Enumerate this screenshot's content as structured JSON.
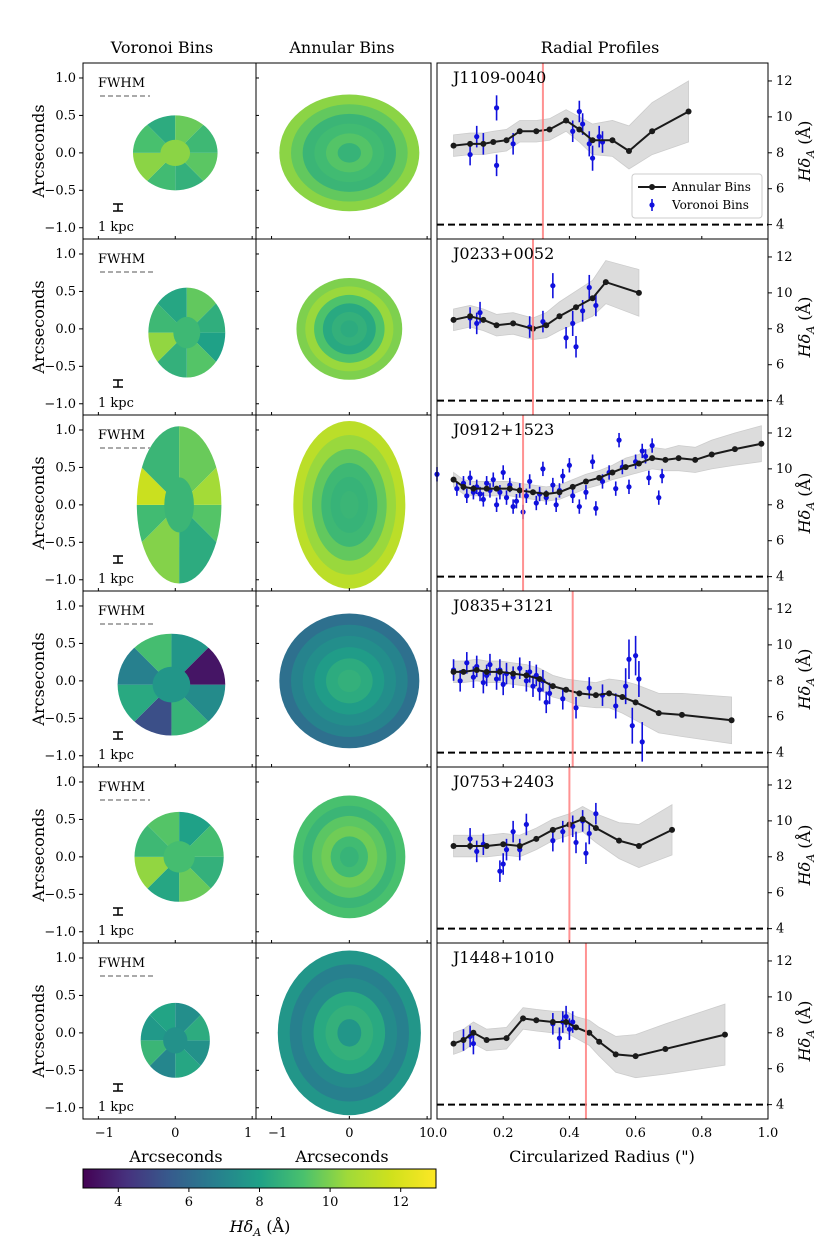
{
  "column_titles": [
    "Voronoi Bins",
    "Annular Bins",
    "Radial Profiles"
  ],
  "colors": {
    "annular_line": "#1a1a1a",
    "voronoi_points": "#1010dd",
    "band": "#d6d6d6",
    "fwhm_line": "#ff7f7f",
    "threshold_line": "#000000",
    "fwhm_bar": "#aaaaaa"
  },
  "image_axes": {
    "ylabel": "Arcseconds",
    "xlabel": "Arcseconds",
    "xticks": [
      "−1",
      "0",
      "1"
    ],
    "yticks": [
      "1.0",
      "0.5",
      "0.0",
      "−0.5",
      "−1.0"
    ],
    "fwhm_label": "FWHM",
    "scale_label": "1 kpc"
  },
  "colorbar": {
    "label": "Hδ_A (Å)",
    "label_main": "Hδ",
    "label_sub": "A",
    "label_unit": " (Å)",
    "min": 3,
    "max": 13,
    "ticks": [
      "4",
      "6",
      "8",
      "10",
      "12"
    ],
    "colormap": "viridis"
  },
  "chart_data": {
    "type": "line",
    "xlabel": "Circularized Radius (\")",
    "ylabel": "Hδ_A (Å)",
    "ylabel_main": "Hδ",
    "ylabel_sub": "A",
    "ylabel_unit": " (Å)",
    "xlim": [
      0.0,
      1.0
    ],
    "ylim": [
      3.2,
      13.0
    ],
    "xticks": [
      "0.0",
      "0.2",
      "0.4",
      "0.6",
      "0.8",
      "1.0"
    ],
    "yticks": [
      "4",
      "6",
      "8",
      "10",
      "12"
    ],
    "threshold": 4,
    "legend": [
      "Annular Bins",
      "Voronoi Bins"
    ],
    "panels": [
      {
        "name": "J1109-0040",
        "fwhm_radius": 0.32,
        "annular": {
          "r": [
            0.05,
            0.1,
            0.14,
            0.17,
            0.21,
            0.25,
            0.3,
            0.34,
            0.39,
            0.43,
            0.47,
            0.53,
            0.58,
            0.65,
            0.76
          ],
          "v": [
            8.4,
            8.5,
            8.5,
            8.6,
            8.7,
            9.2,
            9.2,
            9.3,
            9.8,
            9.3,
            8.7,
            8.7,
            8.1,
            9.2,
            10.3
          ],
          "lo": [
            7.8,
            7.9,
            7.9,
            8.0,
            8.1,
            8.6,
            8.6,
            8.7,
            9.2,
            8.6,
            7.9,
            7.8,
            7.1,
            7.9,
            8.6
          ],
          "hi": [
            9.0,
            9.1,
            9.1,
            9.2,
            9.3,
            9.8,
            9.8,
            9.9,
            10.4,
            10.0,
            9.6,
            9.8,
            9.5,
            10.8,
            12.0
          ]
        },
        "voronoi": {
          "r": [
            0.1,
            0.12,
            0.14,
            0.18,
            0.18,
            0.23,
            0.41,
            0.43,
            0.44,
            0.46,
            0.47,
            0.49,
            0.5
          ],
          "v": [
            7.9,
            8.9,
            8.5,
            10.5,
            7.3,
            8.5,
            9.2,
            10.3,
            9.6,
            8.5,
            7.7,
            8.9,
            8.6
          ],
          "e": [
            0.6,
            0.6,
            0.6,
            0.7,
            0.6,
            0.6,
            0.6,
            0.6,
            0.6,
            0.7,
            0.7,
            0.6,
            0.6
          ]
        }
      },
      {
        "name": "J0233+0052",
        "fwhm_radius": 0.29,
        "annular": {
          "r": [
            0.05,
            0.1,
            0.14,
            0.18,
            0.23,
            0.29,
            0.33,
            0.37,
            0.42,
            0.47,
            0.51,
            0.61
          ],
          "v": [
            8.5,
            8.7,
            8.5,
            8.2,
            8.3,
            8.0,
            8.2,
            8.7,
            9.2,
            9.7,
            10.6,
            10.0
          ],
          "lo": [
            7.9,
            8.1,
            7.9,
            7.6,
            7.7,
            7.4,
            7.5,
            7.9,
            8.3,
            8.7,
            9.4,
            8.7
          ],
          "hi": [
            9.1,
            9.3,
            9.1,
            8.8,
            8.9,
            8.6,
            8.9,
            9.5,
            10.1,
            10.7,
            11.8,
            11.3
          ]
        },
        "voronoi": {
          "r": [
            0.1,
            0.12,
            0.13,
            0.28,
            0.32,
            0.35,
            0.39,
            0.41,
            0.42,
            0.44,
            0.46,
            0.48
          ],
          "v": [
            8.6,
            8.3,
            8.9,
            8.1,
            8.4,
            10.4,
            7.5,
            8.3,
            7.0,
            9.0,
            10.3,
            9.3
          ],
          "e": [
            0.6,
            0.6,
            0.6,
            0.6,
            0.6,
            0.7,
            0.6,
            0.7,
            0.6,
            0.6,
            0.7,
            0.6
          ]
        }
      },
      {
        "name": "J0912+1523",
        "fwhm_radius": 0.26,
        "annular": {
          "r": [
            0.05,
            0.08,
            0.11,
            0.15,
            0.18,
            0.22,
            0.25,
            0.29,
            0.33,
            0.37,
            0.41,
            0.45,
            0.49,
            0.53,
            0.57,
            0.61,
            0.65,
            0.69,
            0.73,
            0.78,
            0.83,
            0.9,
            0.98
          ],
          "v": [
            9.4,
            9.0,
            8.9,
            8.9,
            8.9,
            8.9,
            8.8,
            8.7,
            8.6,
            8.7,
            9.0,
            9.3,
            9.5,
            9.8,
            10.1,
            10.3,
            10.6,
            10.5,
            10.6,
            10.5,
            10.8,
            11.1,
            11.4
          ],
          "lo": [
            9.0,
            8.6,
            8.5,
            8.5,
            8.5,
            8.5,
            8.4,
            8.3,
            8.2,
            8.3,
            8.6,
            8.9,
            9.1,
            9.4,
            9.6,
            9.8,
            10.0,
            9.9,
            9.9,
            9.8,
            10.0,
            10.2,
            10.4
          ],
          "hi": [
            9.8,
            9.4,
            9.3,
            9.3,
            9.3,
            9.3,
            9.2,
            9.1,
            9.0,
            9.1,
            9.4,
            9.7,
            9.9,
            10.2,
            10.6,
            10.8,
            11.2,
            11.1,
            11.3,
            11.2,
            11.6,
            12.0,
            12.4
          ]
        },
        "voronoi": {
          "r": [
            0.0,
            0.06,
            0.08,
            0.09,
            0.1,
            0.11,
            0.12,
            0.13,
            0.14,
            0.15,
            0.16,
            0.17,
            0.18,
            0.19,
            0.2,
            0.21,
            0.22,
            0.23,
            0.24,
            0.25,
            0.26,
            0.27,
            0.28,
            0.3,
            0.31,
            0.32,
            0.33,
            0.35,
            0.36,
            0.37,
            0.38,
            0.4,
            0.41,
            0.43,
            0.45,
            0.47,
            0.48,
            0.5,
            0.52,
            0.54,
            0.55,
            0.56,
            0.58,
            0.6,
            0.62,
            0.63,
            0.64,
            0.65,
            0.67,
            0.68
          ],
          "v": [
            9.7,
            8.9,
            9.2,
            8.5,
            9.5,
            8.7,
            9.0,
            8.6,
            8.3,
            9.2,
            8.8,
            9.4,
            8.0,
            8.7,
            9.8,
            8.4,
            9.1,
            7.9,
            8.2,
            8.8,
            7.6,
            8.5,
            9.3,
            8.1,
            8.6,
            10.0,
            8.4,
            9.1,
            8.0,
            8.8,
            9.6,
            10.2,
            8.5,
            7.9,
            8.7,
            10.4,
            7.8,
            9.3,
            9.8,
            8.9,
            11.6,
            10.1,
            9.0,
            10.4,
            11.0,
            10.7,
            9.5,
            11.3,
            8.4,
            9.6
          ],
          "e": [
            0.4,
            0.4,
            0.4,
            0.4,
            0.4,
            0.4,
            0.4,
            0.4,
            0.4,
            0.4,
            0.4,
            0.4,
            0.4,
            0.4,
            0.4,
            0.4,
            0.4,
            0.4,
            0.4,
            0.4,
            0.4,
            0.4,
            0.4,
            0.4,
            0.4,
            0.4,
            0.4,
            0.4,
            0.4,
            0.4,
            0.4,
            0.4,
            0.4,
            0.4,
            0.4,
            0.4,
            0.4,
            0.4,
            0.4,
            0.4,
            0.4,
            0.4,
            0.4,
            0.4,
            0.4,
            0.4,
            0.4,
            0.4,
            0.4,
            0.4
          ]
        }
      },
      {
        "name": "J0835+3121",
        "fwhm_radius": 0.41,
        "annular": {
          "r": [
            0.05,
            0.08,
            0.12,
            0.15,
            0.19,
            0.23,
            0.27,
            0.31,
            0.35,
            0.39,
            0.43,
            0.48,
            0.52,
            0.56,
            0.6,
            0.67,
            0.74,
            0.89
          ],
          "v": [
            8.5,
            8.5,
            8.6,
            8.5,
            8.5,
            8.4,
            8.3,
            8.1,
            7.7,
            7.5,
            7.3,
            7.2,
            7.3,
            7.1,
            6.8,
            6.2,
            6.1,
            5.8
          ],
          "lo": [
            7.9,
            7.9,
            8.0,
            7.9,
            7.9,
            7.8,
            7.7,
            7.5,
            7.1,
            6.9,
            6.6,
            6.5,
            6.5,
            6.2,
            5.8,
            5.1,
            4.9,
            4.5
          ],
          "hi": [
            9.1,
            9.1,
            9.2,
            9.1,
            9.1,
            9.0,
            8.9,
            8.7,
            8.3,
            8.1,
            8.0,
            7.9,
            8.1,
            8.0,
            7.8,
            7.3,
            7.3,
            7.1
          ]
        },
        "voronoi": {
          "r": [
            0.05,
            0.07,
            0.09,
            0.11,
            0.12,
            0.14,
            0.15,
            0.16,
            0.18,
            0.19,
            0.2,
            0.21,
            0.23,
            0.25,
            0.27,
            0.28,
            0.29,
            0.3,
            0.31,
            0.32,
            0.33,
            0.34,
            0.38,
            0.42,
            0.46,
            0.5,
            0.54,
            0.57,
            0.58,
            0.59,
            0.6,
            0.61,
            0.62
          ],
          "v": [
            8.6,
            8.0,
            9.0,
            8.2,
            8.8,
            7.9,
            8.3,
            8.9,
            8.1,
            8.6,
            7.8,
            8.4,
            8.2,
            8.7,
            8.0,
            8.5,
            7.7,
            8.3,
            7.5,
            8.0,
            6.8,
            7.3,
            7.0,
            6.5,
            7.6,
            7.2,
            6.6,
            7.7,
            9.2,
            5.5,
            9.4,
            8.1,
            4.6
          ],
          "e": [
            0.6,
            0.6,
            0.6,
            0.6,
            0.6,
            0.6,
            0.6,
            0.6,
            0.6,
            0.6,
            0.6,
            0.6,
            0.6,
            0.6,
            0.6,
            0.6,
            0.6,
            0.6,
            0.6,
            0.6,
            0.6,
            0.6,
            0.6,
            0.6,
            0.6,
            0.6,
            0.7,
            1.0,
            1.1,
            1.0,
            1.1,
            1.0,
            1.1
          ]
        }
      },
      {
        "name": "J0753+2403",
        "fwhm_radius": 0.4,
        "annular": {
          "r": [
            0.05,
            0.1,
            0.15,
            0.2,
            0.25,
            0.3,
            0.35,
            0.4,
            0.44,
            0.48,
            0.55,
            0.61,
            0.71
          ],
          "v": [
            8.6,
            8.6,
            8.6,
            8.7,
            8.6,
            9.0,
            9.5,
            9.8,
            10.1,
            9.6,
            8.9,
            8.6,
            9.5
          ],
          "lo": [
            8.0,
            8.0,
            8.0,
            8.1,
            8.0,
            8.4,
            8.9,
            9.2,
            9.4,
            8.8,
            7.9,
            7.4,
            8.1
          ],
          "hi": [
            9.2,
            9.2,
            9.2,
            9.3,
            9.2,
            9.6,
            10.1,
            10.4,
            10.8,
            10.4,
            9.9,
            9.8,
            10.9
          ]
        },
        "voronoi": {
          "r": [
            0.1,
            0.12,
            0.14,
            0.19,
            0.2,
            0.21,
            0.23,
            0.25,
            0.27,
            0.35,
            0.38,
            0.41,
            0.42,
            0.44,
            0.45,
            0.46,
            0.48
          ],
          "v": [
            9.0,
            8.3,
            8.7,
            7.2,
            7.6,
            8.4,
            9.4,
            8.4,
            9.8,
            8.9,
            9.4,
            9.7,
            8.8,
            10.0,
            8.2,
            9.3,
            10.4
          ],
          "e": [
            0.6,
            0.6,
            0.6,
            0.6,
            0.6,
            0.6,
            0.6,
            0.6,
            0.6,
            0.6,
            0.6,
            0.6,
            0.6,
            0.6,
            0.6,
            0.6,
            0.6
          ]
        }
      },
      {
        "name": "J1448+1010",
        "fwhm_radius": 0.45,
        "annular": {
          "r": [
            0.05,
            0.08,
            0.11,
            0.15,
            0.21,
            0.26,
            0.3,
            0.35,
            0.39,
            0.42,
            0.46,
            0.49,
            0.54,
            0.6,
            0.69,
            0.87
          ],
          "v": [
            7.4,
            7.6,
            8.0,
            7.6,
            7.7,
            8.8,
            8.7,
            8.6,
            8.6,
            8.3,
            8.0,
            7.5,
            6.8,
            6.7,
            7.1,
            7.9
          ],
          "lo": [
            6.8,
            7.0,
            7.4,
            7.0,
            7.1,
            8.2,
            8.1,
            8.0,
            8.0,
            7.7,
            7.3,
            6.7,
            5.8,
            5.5,
            5.7,
            6.2
          ],
          "hi": [
            8.0,
            8.2,
            8.6,
            8.2,
            8.3,
            9.4,
            9.3,
            9.2,
            9.2,
            8.9,
            8.7,
            8.3,
            7.8,
            7.9,
            8.5,
            9.6
          ]
        },
        "voronoi": {
          "r": [
            0.08,
            0.1,
            0.11,
            0.35,
            0.37,
            0.38,
            0.39,
            0.4,
            0.41
          ],
          "v": [
            7.6,
            7.8,
            7.4,
            8.5,
            7.7,
            8.6,
            8.9,
            8.2,
            8.6
          ],
          "e": [
            0.6,
            0.6,
            0.6,
            0.6,
            0.6,
            0.6,
            0.6,
            0.6,
            0.6
          ]
        }
      }
    ]
  }
}
